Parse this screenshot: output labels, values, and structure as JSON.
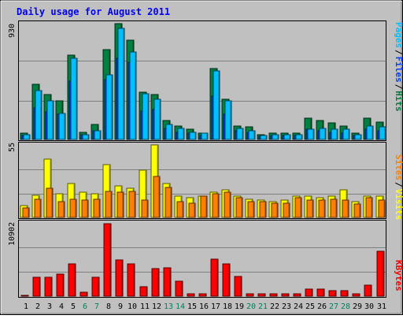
{
  "title": "Daily usage for August 2011",
  "colors": {
    "background": "#C0C0C0",
    "title": "#0000FF",
    "hits": "#008040",
    "files": "#0040FF",
    "pages": "#00C0FF",
    "visits": "#FFFF00",
    "sites": "#FF8000",
    "kbytes": "#FF0000",
    "weekend_day": "#00805C",
    "weekday": "#000000"
  },
  "chart_data": [
    {
      "type": "bar",
      "panel": "hits-files-pages",
      "ymax_label": "930",
      "ylim": [
        0,
        930
      ],
      "legend": [
        "Pages",
        "/",
        "Files",
        "/",
        "Hits"
      ],
      "categories": [
        "1",
        "2",
        "3",
        "4",
        "5",
        "6",
        "7",
        "8",
        "9",
        "10",
        "11",
        "12",
        "13",
        "14",
        "15",
        "16",
        "17",
        "18",
        "19",
        "20",
        "21",
        "22",
        "23",
        "24",
        "25",
        "26",
        "27",
        "28",
        "29",
        "30",
        "31"
      ],
      "series": [
        {
          "name": "Hits",
          "color": "#008040",
          "values": [
            50,
            440,
            360,
            310,
            680,
            60,
            120,
            720,
            930,
            800,
            380,
            360,
            150,
            110,
            80,
            50,
            570,
            320,
            110,
            100,
            40,
            50,
            50,
            50,
            170,
            150,
            130,
            110,
            50,
            170,
            140
          ]
        },
        {
          "name": "Files",
          "color": "#0040FF",
          "values": [
            30,
            250,
            220,
            200,
            470,
            40,
            70,
            480,
            650,
            620,
            230,
            240,
            90,
            60,
            50,
            30,
            350,
            200,
            70,
            60,
            25,
            30,
            30,
            30,
            80,
            70,
            60,
            50,
            30,
            80,
            70
          ]
        },
        {
          "name": "Pages",
          "color": "#00C0FF",
          "values": [
            40,
            390,
            310,
            210,
            650,
            40,
            70,
            520,
            890,
            700,
            370,
            320,
            120,
            90,
            60,
            50,
            550,
            310,
            90,
            70,
            30,
            40,
            40,
            40,
            80,
            90,
            80,
            80,
            40,
            110,
            100
          ]
        }
      ]
    },
    {
      "type": "bar",
      "panel": "visits-sites",
      "ymax_label": "55",
      "ylim": [
        0,
        55
      ],
      "legend": [
        "Sites",
        "/",
        "Visits"
      ],
      "categories": [
        "1",
        "2",
        "3",
        "4",
        "5",
        "6",
        "7",
        "8",
        "9",
        "10",
        "11",
        "12",
        "13",
        "14",
        "15",
        "16",
        "17",
        "18",
        "19",
        "20",
        "21",
        "22",
        "23",
        "24",
        "25",
        "26",
        "27",
        "28",
        "29",
        "30",
        "31"
      ],
      "series": [
        {
          "name": "Visits",
          "color": "#FFFF00",
          "values": [
            9,
            17,
            44,
            18,
            26,
            19,
            18,
            40,
            24,
            22,
            36,
            55,
            26,
            16,
            15,
            16,
            19,
            21,
            16,
            14,
            13,
            12,
            13,
            16,
            16,
            15,
            16,
            21,
            12,
            16,
            16
          ]
        },
        {
          "name": "Sites",
          "color": "#FF8000",
          "values": [
            7,
            14,
            22,
            12,
            14,
            13,
            14,
            20,
            19,
            20,
            13,
            31,
            23,
            12,
            11,
            16,
            18,
            19,
            15,
            12,
            12,
            11,
            11,
            15,
            13,
            13,
            14,
            13,
            10,
            15,
            13
          ]
        }
      ]
    },
    {
      "type": "bar",
      "panel": "kbytes",
      "ymax_label": "10902",
      "ylim": [
        0,
        10902
      ],
      "legend": [
        "KBytes"
      ],
      "categories": [
        "1",
        "2",
        "3",
        "4",
        "5",
        "6",
        "7",
        "8",
        "9",
        "10",
        "11",
        "12",
        "13",
        "14",
        "15",
        "16",
        "17",
        "18",
        "19",
        "20",
        "21",
        "22",
        "23",
        "24",
        "25",
        "26",
        "27",
        "28",
        "29",
        "30",
        "31"
      ],
      "series": [
        {
          "name": "KBytes",
          "color": "#FF0000",
          "values": [
            100,
            2800,
            2800,
            3300,
            4800,
            600,
            2800,
            11000,
            5500,
            4800,
            1400,
            4100,
            4300,
            2300,
            400,
            300,
            5600,
            4800,
            3000,
            400,
            300,
            400,
            400,
            400,
            1100,
            1100,
            800,
            800,
            400,
            1600,
            6700
          ]
        }
      ]
    }
  ],
  "x_labels": [
    {
      "text": "1",
      "weekend": false
    },
    {
      "text": "2",
      "weekend": false
    },
    {
      "text": "3",
      "weekend": false
    },
    {
      "text": "4",
      "weekend": false
    },
    {
      "text": "5",
      "weekend": false
    },
    {
      "text": "6",
      "weekend": true
    },
    {
      "text": "7",
      "weekend": true
    },
    {
      "text": "8",
      "weekend": false
    },
    {
      "text": "9",
      "weekend": false
    },
    {
      "text": "10",
      "weekend": false
    },
    {
      "text": "11",
      "weekend": false
    },
    {
      "text": "12",
      "weekend": false
    },
    {
      "text": "13",
      "weekend": true
    },
    {
      "text": "14",
      "weekend": true
    },
    {
      "text": "15",
      "weekend": false
    },
    {
      "text": "16",
      "weekend": false
    },
    {
      "text": "17",
      "weekend": false
    },
    {
      "text": "18",
      "weekend": false
    },
    {
      "text": "19",
      "weekend": false
    },
    {
      "text": "20",
      "weekend": true
    },
    {
      "text": "21",
      "weekend": true
    },
    {
      "text": "22",
      "weekend": false
    },
    {
      "text": "23",
      "weekend": false
    },
    {
      "text": "24",
      "weekend": false
    },
    {
      "text": "25",
      "weekend": false
    },
    {
      "text": "26",
      "weekend": false
    },
    {
      "text": "27",
      "weekend": true
    },
    {
      "text": "28",
      "weekend": true
    },
    {
      "text": "29",
      "weekend": false
    },
    {
      "text": "30",
      "weekend": false
    },
    {
      "text": "31",
      "weekend": false
    }
  ]
}
